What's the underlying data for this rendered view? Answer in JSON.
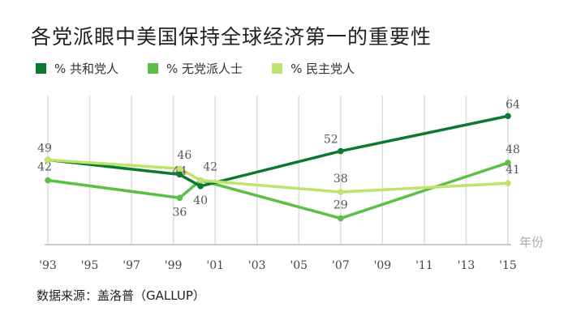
{
  "chart_data": {
    "type": "line",
    "title": "各党派眼中美国保持全球经济第一的重要性",
    "xlabel": "年份",
    "ylabel": "",
    "xlim": [
      1993,
      2015
    ],
    "ylim": [
      20,
      71
    ],
    "x_ticks": [
      1993,
      1995,
      1997,
      1999,
      2001,
      2003,
      2005,
      2007,
      2009,
      2011,
      2013,
      2015
    ],
    "x_tick_labels": [
      "'93",
      "'95",
      "'97",
      "'99",
      "'01",
      "'03",
      "'05",
      "'07",
      "'09",
      "'11",
      "'13",
      "'15"
    ],
    "grid": "vertical",
    "legend_position": "top-left",
    "series": [
      {
        "name": "% 共和党人",
        "color": "#0b7a30",
        "x": [
          1993,
          1999.3,
          2000.3,
          2007,
          2015
        ],
        "values": [
          49,
          44,
          40,
          52,
          64
        ],
        "labels": [
          "",
          "44",
          "40",
          "52",
          "64"
        ]
      },
      {
        "name": "% 无党派人士",
        "color": "#5bbf48",
        "x": [
          1993,
          1999.3,
          2000.3,
          2007,
          2015
        ],
        "values": [
          42,
          36,
          42,
          29,
          48
        ],
        "labels": [
          "42",
          "36",
          "",
          "29",
          "48"
        ]
      },
      {
        "name": "% 民主党人",
        "color": "#bfe36c",
        "x": [
          1993,
          1999.3,
          2000.3,
          2007,
          2015
        ],
        "values": [
          49,
          46,
          42,
          38,
          41
        ],
        "labels": [
          "49",
          "46",
          "42",
          "38",
          "41"
        ]
      }
    ]
  },
  "source": "数据来源：盖洛普（GALLUP）"
}
